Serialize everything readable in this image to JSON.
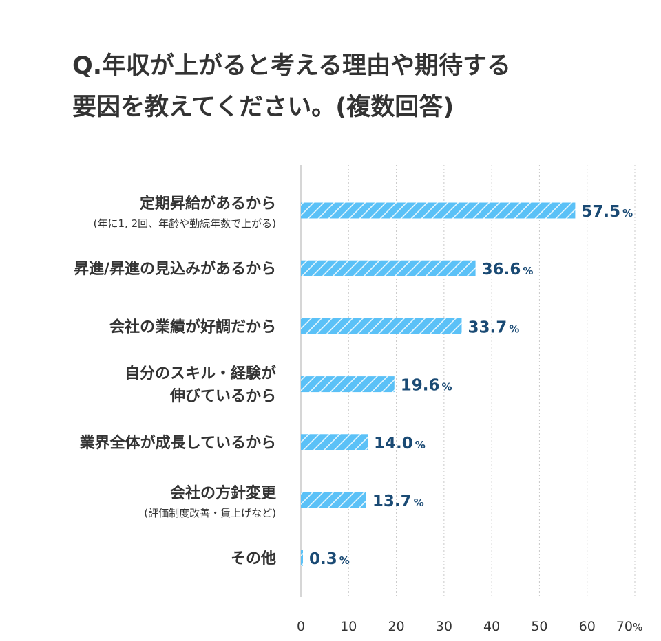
{
  "title": {
    "line1": "Q.年収が上がると考える理由や期待する",
    "line2": "要因を教えてください。(複数回答)"
  },
  "chart_data": {
    "type": "bar",
    "orientation": "horizontal",
    "categories": [
      {
        "label": "定期昇給があるから",
        "sublabel": "(年に1, 2回、年齢や勤続年数で上がる)"
      },
      {
        "label": "昇進/昇進の見込みがあるから",
        "sublabel": ""
      },
      {
        "label": "会社の業績が好調だから",
        "sublabel": ""
      },
      {
        "label": "自分のスキル・経験が\n伸びているから",
        "sublabel": ""
      },
      {
        "label": "業界全体が成長しているから",
        "sublabel": ""
      },
      {
        "label": "会社の方針変更",
        "sublabel": "(評価制度改善・賃上げなど)"
      },
      {
        "label": "その他",
        "sublabel": ""
      }
    ],
    "values": [
      57.5,
      36.6,
      33.7,
      19.6,
      14.0,
      13.7,
      0.3
    ],
    "value_labels": [
      "57.5",
      "36.6",
      "33.7",
      "19.6",
      "14.0",
      "13.7",
      "0.3"
    ],
    "value_unit": "%",
    "xlim": [
      0,
      70
    ],
    "xticks": [
      "0",
      "10",
      "20",
      "30",
      "40",
      "50",
      "60",
      "70"
    ],
    "xtick_unit": "%",
    "grid": true,
    "bar_color": "#5bc1f7",
    "label_color": "#1a4a74"
  }
}
